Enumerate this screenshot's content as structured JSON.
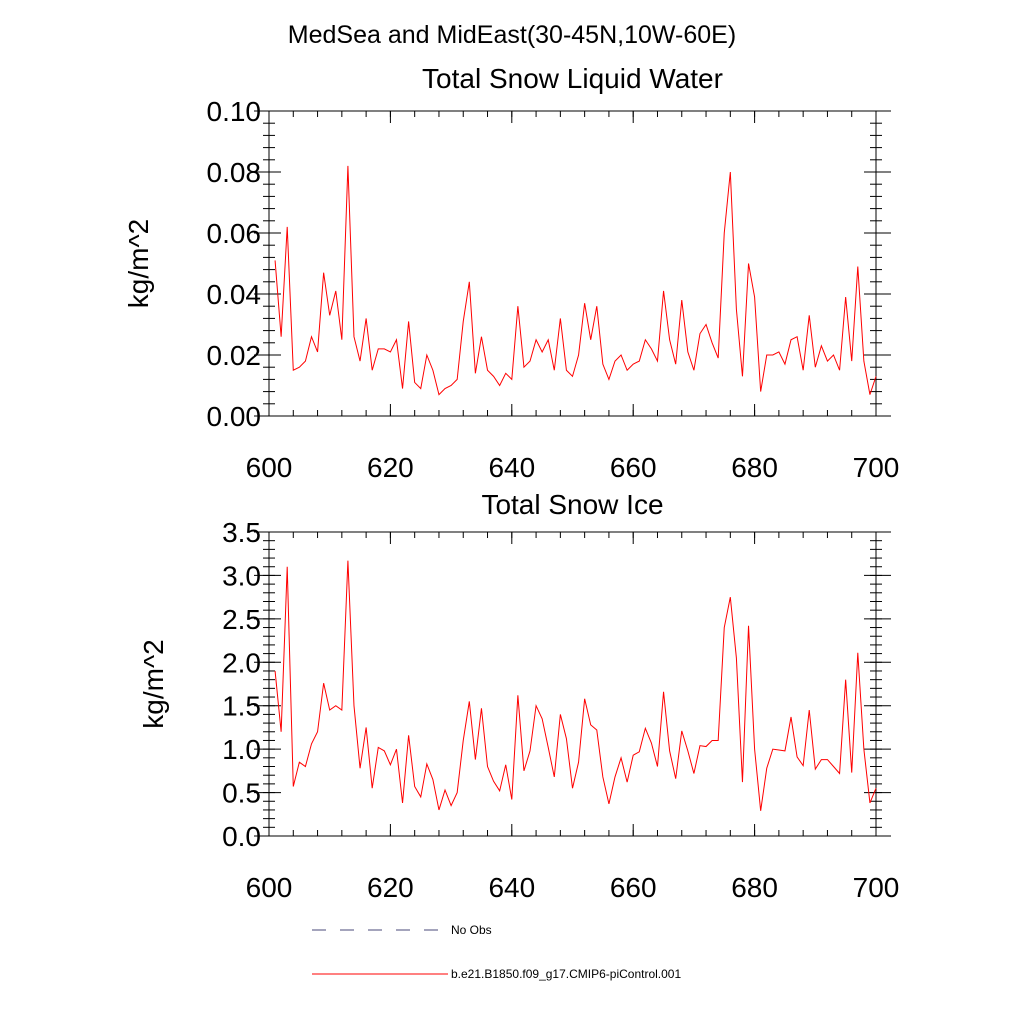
{
  "figure_title": "MedSea and MidEast(30-45N,10W-60E)",
  "colors": {
    "series": "#ff0000",
    "no_obs": "#4a4a7a",
    "axis": "#000000"
  },
  "legend": [
    {
      "label": "No Obs",
      "style": "dashed",
      "color": "#4a4a7a"
    },
    {
      "label": "b.e21.B1850.f09_g17.CMIP6-piControl.001",
      "style": "solid",
      "color": "#ff0000"
    }
  ],
  "chart_data": [
    {
      "type": "line",
      "title": "Total Snow Liquid Water",
      "xlabel": "",
      "ylabel": "kg/m^2",
      "xlim": [
        600,
        700
      ],
      "ylim": [
        0,
        0.1
      ],
      "xticks": [
        600,
        620,
        640,
        660,
        680,
        700
      ],
      "xtick_labels": [
        "600",
        "620",
        "640",
        "660",
        "680",
        "700"
      ],
      "yticks": [
        0,
        0.02,
        0.04,
        0.06,
        0.08,
        0.1
      ],
      "ytick_labels": [
        "0.00",
        "0.02",
        "0.04",
        "0.06",
        "0.08",
        "0.10"
      ],
      "x_start": 601,
      "series": [
        {
          "name": "b.e21.B1850.f09_g17.CMIP6-piControl.001",
          "values": [
            0.051,
            0.026,
            0.062,
            0.015,
            0.016,
            0.018,
            0.026,
            0.021,
            0.047,
            0.033,
            0.041,
            0.025,
            0.082,
            0.026,
            0.018,
            0.032,
            0.015,
            0.022,
            0.022,
            0.021,
            0.025,
            0.009,
            0.031,
            0.011,
            0.009,
            0.02,
            0.015,
            0.007,
            0.009,
            0.01,
            0.012,
            0.031,
            0.044,
            0.014,
            0.026,
            0.015,
            0.013,
            0.01,
            0.014,
            0.012,
            0.036,
            0.016,
            0.018,
            0.025,
            0.021,
            0.025,
            0.015,
            0.032,
            0.015,
            0.013,
            0.02,
            0.037,
            0.025,
            0.036,
            0.017,
            0.012,
            0.018,
            0.02,
            0.015,
            0.017,
            0.018,
            0.025,
            0.022,
            0.018,
            0.041,
            0.025,
            0.017,
            0.038,
            0.021,
            0.015,
            0.027,
            0.03,
            0.024,
            0.019,
            0.06,
            0.08,
            0.035,
            0.013,
            0.05,
            0.039,
            0.008,
            0.02,
            0.02,
            0.021,
            0.017,
            0.025,
            0.026,
            0.015,
            0.033,
            0.016,
            0.023,
            0.018,
            0.02,
            0.015,
            0.039,
            0.018,
            0.049,
            0.018,
            0.007,
            0.013
          ]
        }
      ]
    },
    {
      "type": "line",
      "title": "Total Snow Ice",
      "xlabel": "",
      "ylabel": "kg/m^2",
      "xlim": [
        600,
        700
      ],
      "ylim": [
        0,
        3.5
      ],
      "xticks": [
        600,
        620,
        640,
        660,
        680,
        700
      ],
      "xtick_labels": [
        "600",
        "620",
        "640",
        "660",
        "680",
        "700"
      ],
      "yticks": [
        0,
        0.5,
        1,
        1.5,
        2,
        2.5,
        3,
        3.5
      ],
      "ytick_labels": [
        "0.0",
        "0.5",
        "1.0",
        "1.5",
        "2.0",
        "2.5",
        "3.0",
        "3.5"
      ],
      "x_start": 601,
      "series": [
        {
          "name": "b.e21.B1850.f09_g17.CMIP6-piControl.001",
          "values": [
            1.9,
            1.2,
            3.1,
            0.57,
            0.85,
            0.8,
            1.06,
            1.2,
            1.76,
            1.45,
            1.5,
            1.45,
            3.17,
            1.5,
            0.78,
            1.25,
            0.55,
            1.02,
            0.98,
            0.82,
            1.0,
            0.38,
            1.16,
            0.57,
            0.45,
            0.83,
            0.65,
            0.3,
            0.53,
            0.35,
            0.5,
            1.1,
            1.55,
            0.88,
            1.47,
            0.8,
            0.63,
            0.52,
            0.82,
            0.42,
            1.62,
            0.75,
            0.98,
            1.5,
            1.35,
            1.02,
            0.68,
            1.4,
            1.12,
            0.55,
            0.85,
            1.58,
            1.28,
            1.22,
            0.68,
            0.37,
            0.68,
            0.9,
            0.62,
            0.93,
            0.97,
            1.24,
            1.07,
            0.8,
            1.66,
            0.98,
            0.66,
            1.21,
            0.98,
            0.72,
            1.04,
            1.03,
            1.1,
            1.1,
            2.4,
            2.75,
            2.05,
            0.62,
            2.42,
            1.0,
            0.29,
            0.78,
            1.0,
            0.99,
            0.98,
            1.37,
            0.91,
            0.81,
            1.45,
            0.77,
            0.88,
            0.88,
            0.8,
            0.72,
            1.8,
            0.73,
            2.11,
            1.0,
            0.38,
            0.55
          ]
        }
      ]
    }
  ]
}
